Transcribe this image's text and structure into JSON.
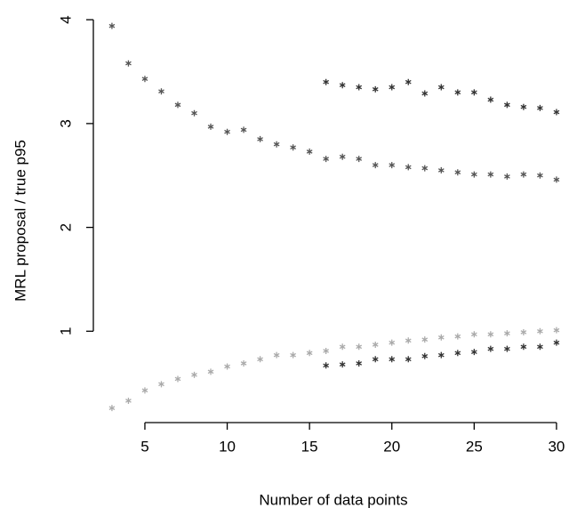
{
  "chart_data": {
    "type": "scatter",
    "xlabel": "Number of data points",
    "ylabel": "MRL proposal / true p95",
    "xlim": [
      1.87,
      30.76
    ],
    "ylim": [
      0.12,
      4.19
    ],
    "xticks": [
      5,
      10,
      15,
      20,
      25,
      30
    ],
    "yticks": [
      1,
      2,
      3,
      4
    ],
    "grid": false,
    "series": [
      {
        "color": "#555555",
        "x": [
          3,
          4,
          5,
          6,
          7,
          8,
          9,
          10,
          11,
          12,
          13,
          14,
          15,
          16,
          17,
          18,
          19,
          20,
          21,
          22,
          23,
          24,
          25,
          26,
          27,
          28,
          29,
          30
        ],
        "values": [
          3.94,
          3.58,
          3.43,
          3.31,
          3.18,
          3.1,
          2.97,
          2.92,
          2.94,
          2.85,
          2.8,
          2.77,
          2.73,
          2.66,
          2.68,
          2.66,
          2.6,
          2.6,
          2.58,
          2.57,
          2.55,
          2.53,
          2.51,
          2.51,
          2.49,
          2.51,
          2.5,
          2.46
        ]
      },
      {
        "color": "#333333",
        "x": [
          16,
          17,
          18,
          19,
          20,
          21,
          22,
          23,
          24,
          25,
          26,
          27,
          28,
          29,
          30
        ],
        "values": [
          3.4,
          3.37,
          3.35,
          3.33,
          3.35,
          3.4,
          3.29,
          3.35,
          3.3,
          3.3,
          3.23,
          3.18,
          3.16,
          3.15,
          3.11
        ]
      },
      {
        "color": "#aaaaaa",
        "x": [
          3,
          4,
          5,
          6,
          7,
          8,
          9,
          10,
          11,
          12,
          13,
          14,
          15,
          16,
          17,
          18,
          19,
          20,
          21,
          22,
          23,
          24,
          25,
          26,
          27,
          28,
          29,
          30
        ],
        "values": [
          0.26,
          0.33,
          0.43,
          0.49,
          0.54,
          0.58,
          0.61,
          0.66,
          0.69,
          0.73,
          0.77,
          0.77,
          0.79,
          0.81,
          0.85,
          0.85,
          0.87,
          0.89,
          0.91,
          0.92,
          0.94,
          0.95,
          0.97,
          0.97,
          0.98,
          0.99,
          1.0,
          1.01
        ]
      },
      {
        "color": "#333333",
        "x": [
          16,
          17,
          18,
          19,
          20,
          21,
          22,
          23,
          24,
          25,
          26,
          27,
          28,
          29,
          30
        ],
        "values": [
          0.67,
          0.68,
          0.69,
          0.73,
          0.73,
          0.73,
          0.76,
          0.77,
          0.79,
          0.8,
          0.83,
          0.83,
          0.85,
          0.85,
          0.89
        ]
      }
    ]
  }
}
